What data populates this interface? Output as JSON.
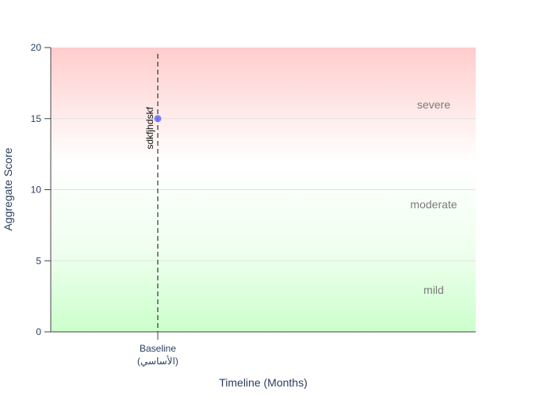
{
  "chart_data": {
    "type": "scatter",
    "xlabel": "Timeline (Months)",
    "ylabel": "Aggregate Score",
    "ylim": [
      0,
      20
    ],
    "yticks": [
      0,
      5,
      10,
      15,
      20
    ],
    "grid": true,
    "x_categories": [
      {
        "label": "Baseline",
        "sublabel": "(الأساسي)"
      }
    ],
    "points": [
      {
        "x_index": 0,
        "y": 15,
        "label": "sdkfjhdskf",
        "color": "#636efa"
      }
    ],
    "reference_line": {
      "x_index": 0,
      "style": "dashed",
      "color": "#333333"
    },
    "bands": [
      {
        "name": "mild",
        "from": 0,
        "to": 6,
        "color_bottom": "#ccffcc",
        "color_top": "#f0fff0"
      },
      {
        "name": "moderate",
        "from": 6,
        "to": 12,
        "color_bottom": "#f0fff0",
        "color_top": "#ffffff"
      },
      {
        "name": "severe",
        "from": 12,
        "to": 20,
        "color_bottom": "#ffffff",
        "color_top": "#ffcccc"
      }
    ]
  }
}
